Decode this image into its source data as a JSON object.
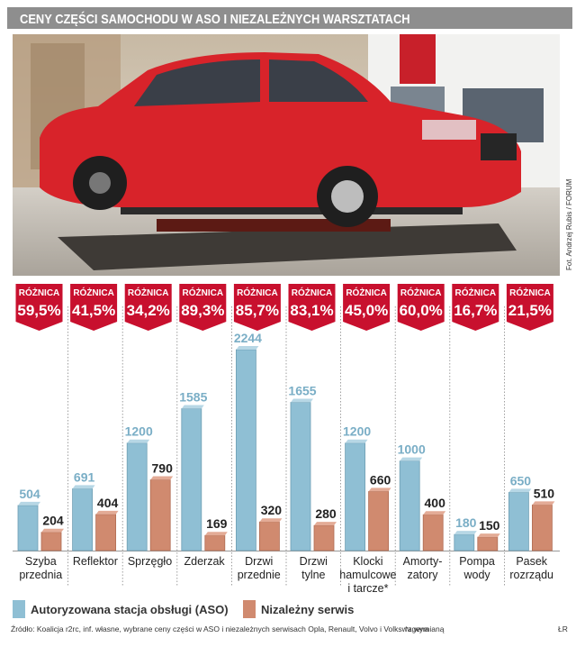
{
  "header": {
    "title": "CENY CZĘŚCI SAMOCHODU W ASO I NIEZALEŻNYCH WARSZTATACH"
  },
  "photo": {
    "credit": "Fot. Andrzej Rubis / FORUM",
    "car_color": "#d8232a"
  },
  "colors": {
    "aso": "#8fbfd4",
    "independent": "#d08a6f",
    "ribbon": "#c8102e",
    "title_bar": "#8e8e8e"
  },
  "chart_data": {
    "type": "bar",
    "title": "CENY CZĘŚCI SAMOCHODU W ASO I NIEZALEŻNYCH WARSZTATACH",
    "xlabel": "",
    "ylabel": "",
    "ylim": [
      0,
      2400
    ],
    "grid": false,
    "legend_position": "bottom-left",
    "categories": [
      [
        "Szyba",
        "przednia"
      ],
      [
        "Reflektor"
      ],
      [
        "Sprzęgło"
      ],
      [
        "Zderzak"
      ],
      [
        "Drzwi",
        "przednie"
      ],
      [
        "Drzwi",
        "tylne"
      ],
      [
        "Klocki",
        "hamulcowe",
        "i tarcze*"
      ],
      [
        "Amorty-",
        "zatory"
      ],
      [
        "Pompa",
        "wody"
      ],
      [
        "Pasek",
        "rozrządu"
      ]
    ],
    "series": [
      {
        "name": "Autoryzowana stacja obsługi (ASO)",
        "values": [
          504,
          691,
          1200,
          1585,
          2244,
          1655,
          1200,
          1000,
          180,
          650
        ]
      },
      {
        "name": "Nizależny serwis",
        "values": [
          204,
          404,
          790,
          169,
          320,
          280,
          660,
          400,
          150,
          510
        ]
      }
    ],
    "ribbon_label": "RÓŻNICA",
    "differences": [
      "59,5%",
      "41,5%",
      "34,2%",
      "89,3%",
      "85,7%",
      "83,1%",
      "45,0%",
      "60,0%",
      "16,7%",
      "21,5%"
    ]
  },
  "footer": {
    "source": "Źródło: Koalicja r2rc, inf. własne, wybrane ceny części w ASO i niezależnych serwisach Opla, Renault, Volvo i Volkswagena",
    "note": "*z wymianą",
    "signature": "ŁR"
  }
}
